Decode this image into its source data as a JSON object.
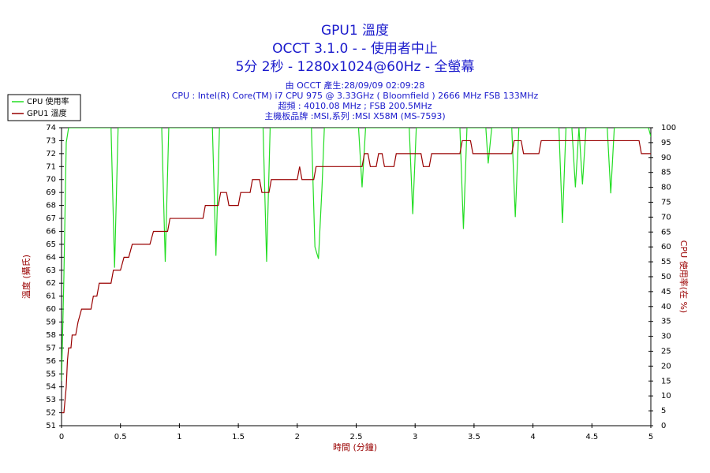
{
  "chart_data": {
    "type": "line",
    "title": "GPU1 溫度",
    "subtitle": [
      "OCCT 3.1.0 -  - 使用者中止",
      "5分 2秒 - 1280x1024@60Hz - 全螢幕"
    ],
    "annotations": [
      "由 OCCT 產生:28/09/09 02:09:28",
      "CPU : Intel(R) Core(TM) i7 CPU 975 @ 3.33GHz ( Bloomfield ) 2666 MHz FSB 133MHz",
      "超頻 : 4010.08 MHz ; FSB 200.5MHz",
      "主機板品牌 :MSI,系列 :MSI X58M (MS-7593)"
    ],
    "xlabel": "時間 (分鐘)",
    "ylabel": "溫度 (攝氏)",
    "y2label": "CPU 使用率(在 %)",
    "legend": "top-left",
    "xlim": [
      0,
      5
    ],
    "xticks": [
      0,
      0.5,
      1,
      1.5,
      2,
      2.5,
      3,
      3.5,
      4,
      4.5,
      5
    ],
    "ylim": [
      51,
      74
    ],
    "yticks": [
      51,
      52,
      53,
      54,
      55,
      56,
      57,
      58,
      59,
      60,
      61,
      62,
      63,
      64,
      65,
      66,
      67,
      68,
      69,
      70,
      71,
      72,
      73,
      74
    ],
    "y2lim": [
      0,
      100
    ],
    "y2ticks": [
      0,
      5,
      10,
      15,
      20,
      25,
      30,
      35,
      40,
      45,
      50,
      55,
      60,
      65,
      70,
      75,
      80,
      85,
      90,
      95,
      100
    ],
    "series": [
      {
        "name": "CPU 使用率",
        "color": "#22dd22",
        "axis": "y2",
        "x": [
          0,
          0.02,
          0.04,
          0.06,
          0.42,
          0.45,
          0.48,
          0.85,
          0.88,
          0.91,
          1.28,
          1.31,
          1.34,
          1.71,
          1.74,
          1.77,
          2.12,
          2.15,
          2.18,
          2.21,
          2.23,
          2.52,
          2.55,
          2.58,
          2.95,
          2.98,
          3.01,
          3.38,
          3.41,
          3.44,
          3.6,
          3.62,
          3.65,
          3.82,
          3.85,
          3.88,
          4.22,
          4.25,
          4.28,
          4.33,
          4.36,
          4.39,
          4.42,
          4.45,
          4.63,
          4.66,
          4.69,
          4.98,
          5.0
        ],
        "values": [
          15,
          50,
          95,
          100,
          100,
          53,
          100,
          100,
          55,
          100,
          100,
          57,
          100,
          100,
          55,
          100,
          100,
          60,
          56,
          80,
          100,
          100,
          80,
          100,
          100,
          71,
          100,
          100,
          66,
          100,
          100,
          88,
          100,
          100,
          70,
          100,
          100,
          68,
          100,
          100,
          80,
          100,
          81,
          100,
          100,
          78,
          100,
          100,
          97
        ]
      },
      {
        "name": "GPU1 溫度",
        "color": "#990000",
        "x": [
          0,
          0.02,
          0.04,
          0.05,
          0.06,
          0.08,
          0.09,
          0.12,
          0.14,
          0.17,
          0.25,
          0.27,
          0.3,
          0.32,
          0.42,
          0.44,
          0.5,
          0.53,
          0.57,
          0.6,
          0.75,
          0.78,
          0.9,
          0.92,
          1.2,
          1.22,
          1.33,
          1.35,
          1.4,
          1.42,
          1.5,
          1.52,
          1.6,
          1.62,
          1.68,
          1.7,
          1.76,
          1.78,
          2.0,
          2.02,
          2.04,
          2.14,
          2.16,
          2.55,
          2.57,
          2.6,
          2.62,
          2.67,
          2.69,
          2.72,
          2.74,
          2.82,
          2.84,
          3.05,
          3.07,
          3.12,
          3.14,
          3.38,
          3.4,
          3.47,
          3.49,
          3.82,
          3.84,
          3.9,
          3.92,
          4.05,
          4.07,
          4.9,
          4.92,
          5.0
        ],
        "values": [
          52,
          52,
          54,
          56,
          57,
          57,
          58,
          58,
          59,
          60,
          60,
          61,
          61,
          62,
          62,
          63,
          63,
          64,
          64,
          65,
          65,
          66,
          66,
          67,
          67,
          68,
          68,
          69,
          69,
          68,
          68,
          69,
          69,
          70,
          70,
          69,
          69,
          70,
          70,
          71,
          70,
          70,
          71,
          71,
          72,
          72,
          71,
          71,
          72,
          72,
          71,
          71,
          72,
          72,
          71,
          71,
          72,
          72,
          73,
          73,
          72,
          72,
          73,
          73,
          72,
          72,
          73,
          73,
          72,
          72
        ]
      }
    ]
  }
}
